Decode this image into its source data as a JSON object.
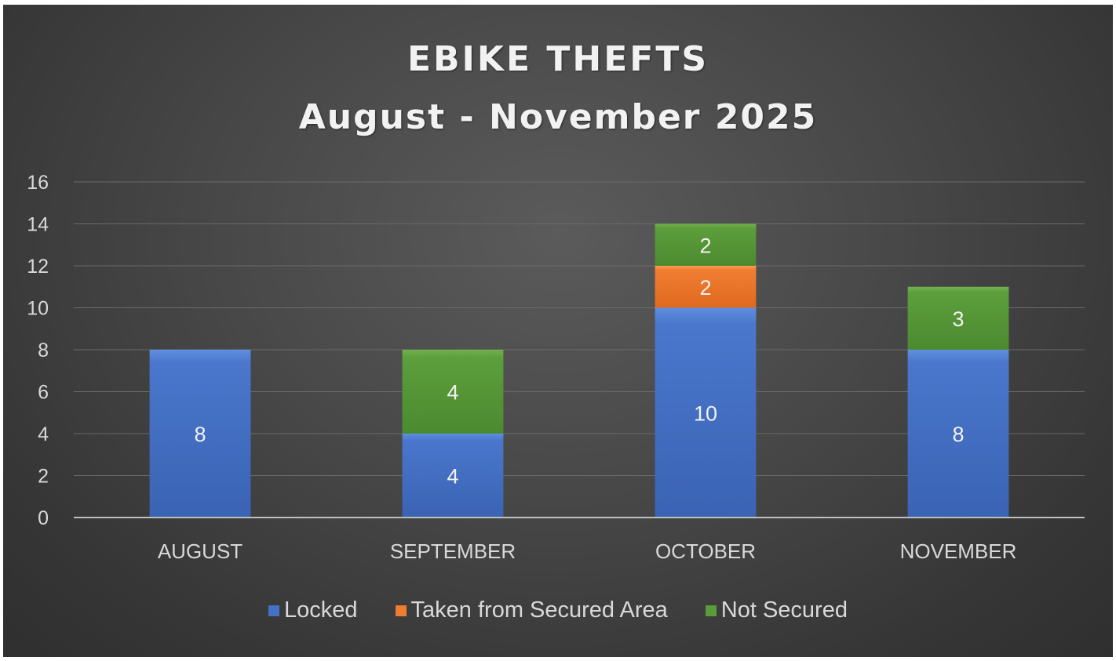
{
  "chart_data": {
    "type": "bar",
    "stacked": true,
    "title": "EBIKE THEFTS",
    "subtitle": "August - November 2025",
    "categories": [
      "AUGUST",
      "SEPTEMBER",
      "OCTOBER",
      "NOVEMBER"
    ],
    "series": [
      {
        "name": "Locked",
        "color": "#4472c4",
        "values": [
          8,
          4,
          10,
          8
        ]
      },
      {
        "name": "Taken from Secured Area",
        "color": "#ed7d31",
        "values": [
          0,
          0,
          2,
          0
        ]
      },
      {
        "name": "Not Secured",
        "color": "#5b9b3a",
        "values": [
          0,
          4,
          2,
          3
        ]
      }
    ],
    "ylim": [
      0,
      16
    ],
    "yticks": [
      0,
      2,
      4,
      6,
      8,
      10,
      12,
      14,
      16
    ],
    "grid": true,
    "legend": "bottom",
    "data_labels": true
  }
}
